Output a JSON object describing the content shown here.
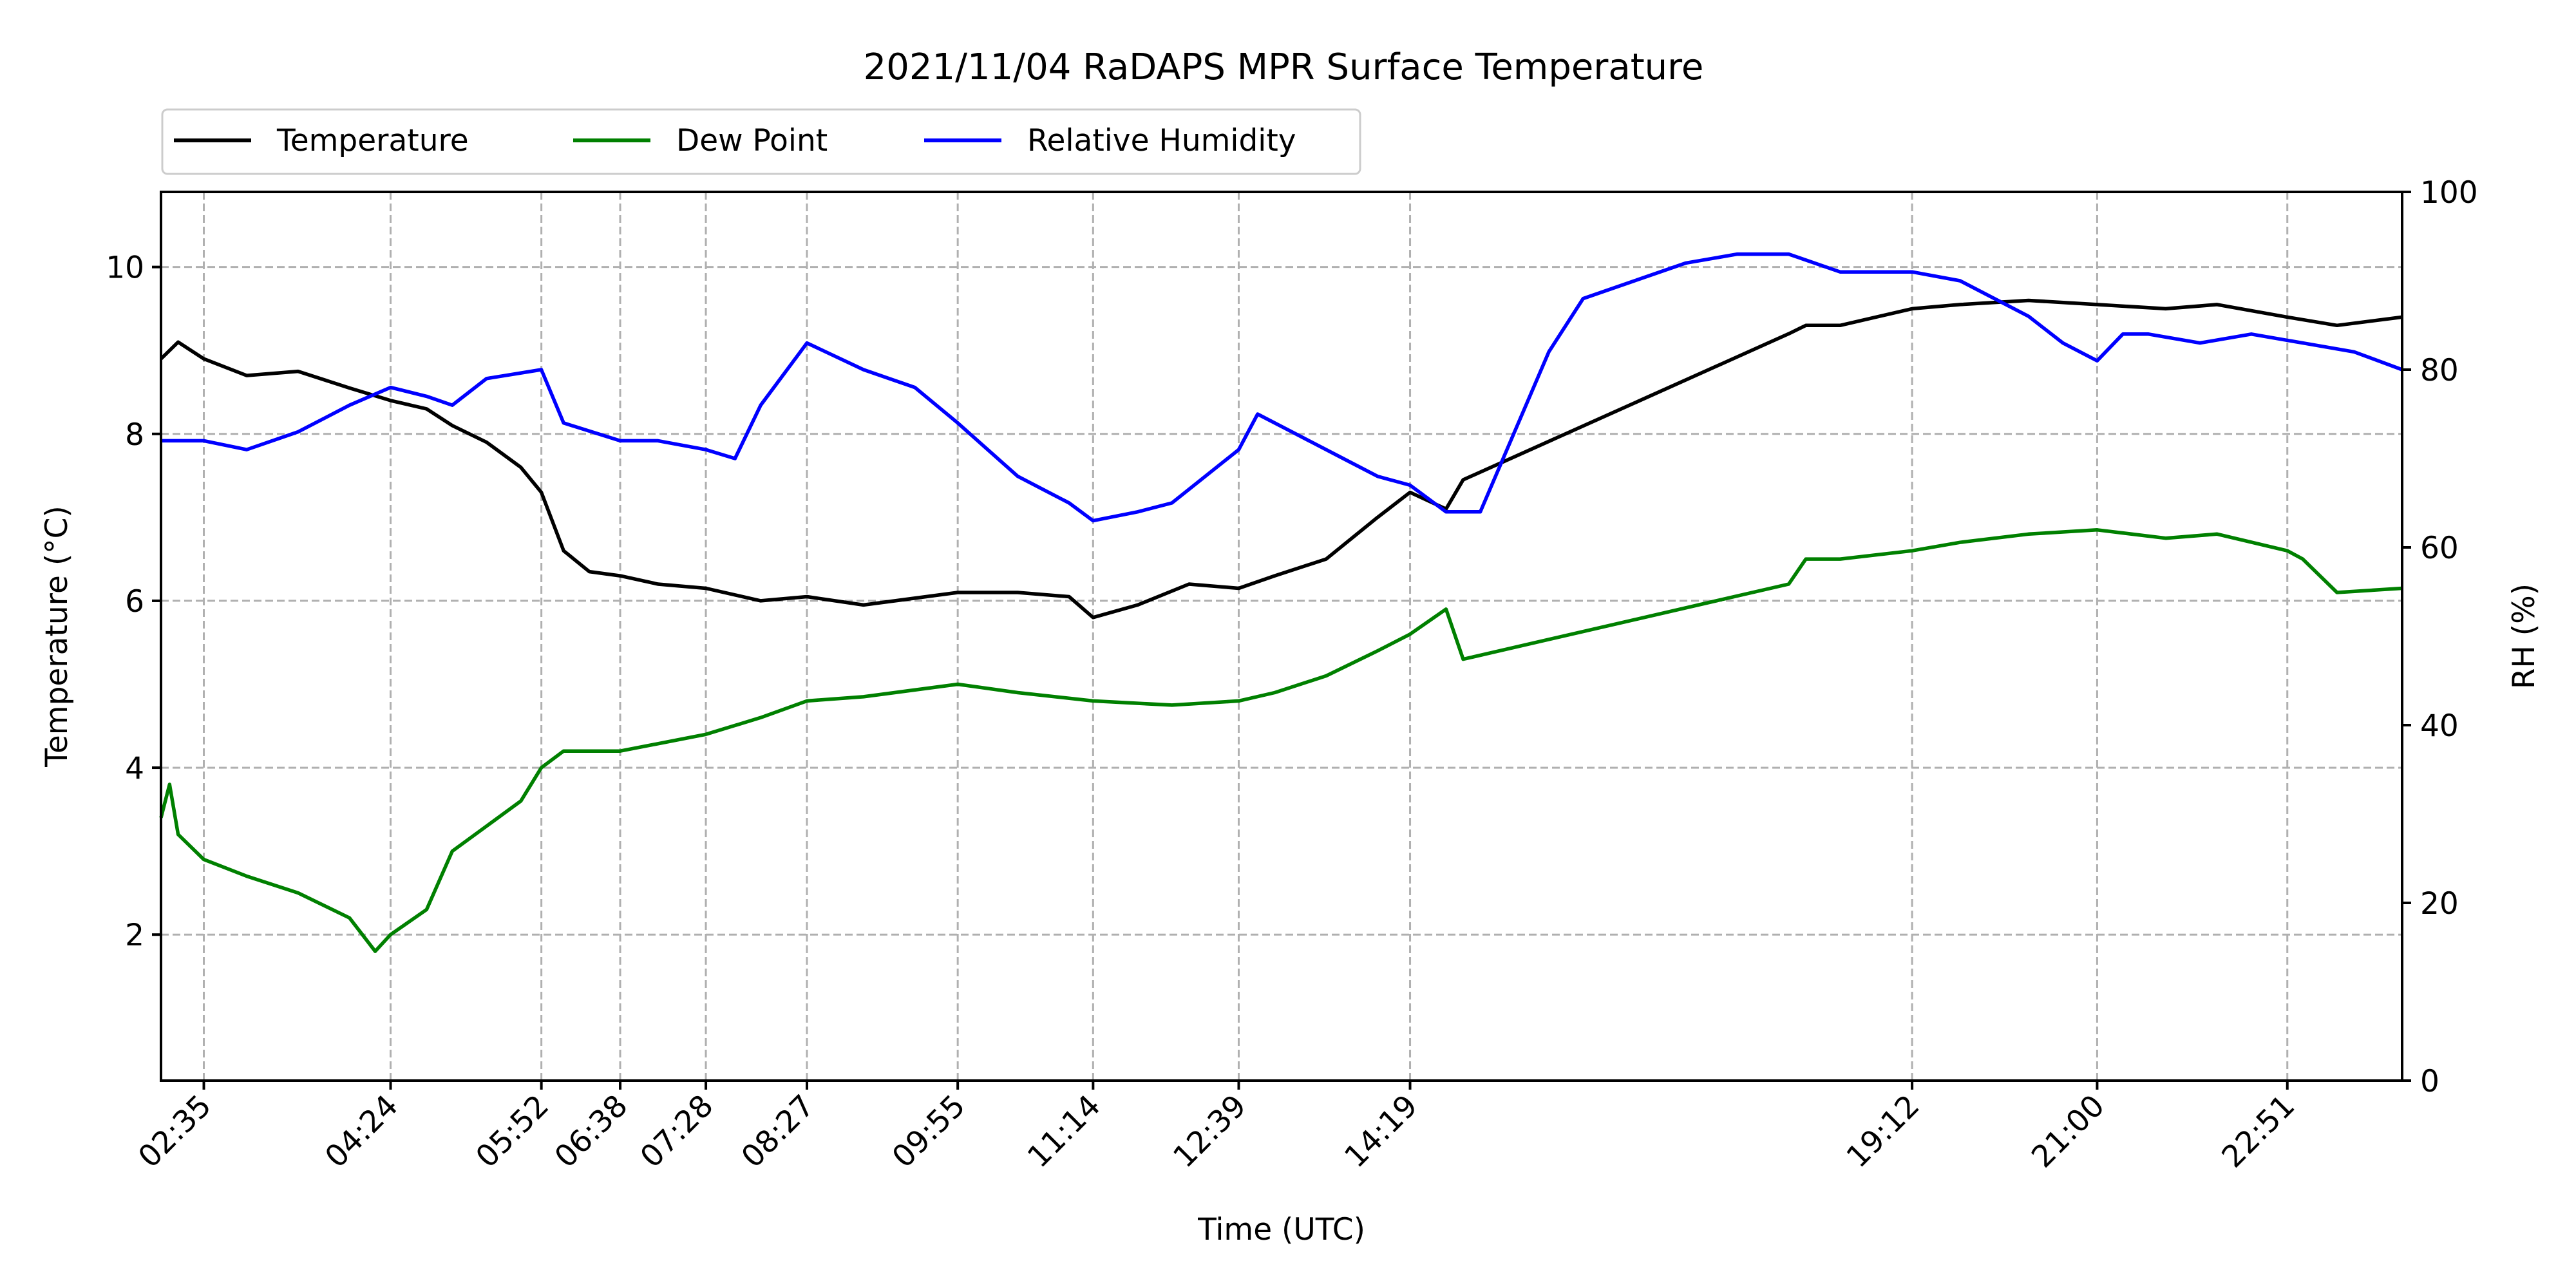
{
  "chart_data": {
    "type": "line",
    "title": "2021/11/04 RaDAPS MPR Surface Temperature",
    "xlabel": "Time (UTC)",
    "ylabel": "Temperature ($^\\circ$C)",
    "ylabel_display": "Temperature (°C)",
    "y2label": "RH (%)",
    "xlim": [
      "02:10",
      "23:58"
    ],
    "ylim": [
      0.25,
      10.9
    ],
    "y2lim": [
      0,
      100
    ],
    "x_ticks": [
      "02:35",
      "04:24",
      "05:52",
      "06:38",
      "07:28",
      "08:27",
      "09:55",
      "11:14",
      "12:39",
      "14:19",
      "19:12",
      "21:00",
      "22:51"
    ],
    "y_ticks": [
      2,
      4,
      6,
      8,
      10
    ],
    "y2_ticks": [
      0,
      20,
      40,
      60,
      80,
      100
    ],
    "grid": true,
    "legend": "top-left, above plot, 3 columns",
    "series": [
      {
        "name": "Temperature",
        "color": "#000000",
        "axis": "left",
        "x": [
          "02:10",
          "02:20",
          "02:35",
          "03:00",
          "03:30",
          "04:00",
          "04:24",
          "04:45",
          "05:00",
          "05:20",
          "05:40",
          "05:52",
          "06:05",
          "06:20",
          "06:38",
          "07:00",
          "07:28",
          "08:00",
          "08:27",
          "09:00",
          "09:55",
          "10:30",
          "11:00",
          "11:14",
          "11:40",
          "12:10",
          "12:39",
          "13:00",
          "13:30",
          "14:00",
          "14:19",
          "14:40",
          "14:50",
          "18:00",
          "18:10",
          "18:30",
          "19:12",
          "19:40",
          "20:20",
          "21:00",
          "21:40",
          "22:10",
          "22:51",
          "23:20",
          "23:58"
        ],
        "y": [
          8.9,
          9.1,
          8.9,
          8.7,
          8.75,
          8.55,
          8.4,
          8.3,
          8.1,
          7.9,
          7.6,
          7.3,
          6.6,
          6.35,
          6.3,
          6.2,
          6.15,
          6.0,
          6.05,
          5.95,
          6.1,
          6.1,
          6.05,
          5.8,
          5.95,
          6.2,
          6.15,
          6.3,
          6.5,
          7.0,
          7.3,
          7.1,
          7.45,
          9.2,
          9.3,
          9.3,
          9.5,
          9.55,
          9.6,
          9.55,
          9.5,
          9.55,
          9.4,
          9.3,
          9.4
        ]
      },
      {
        "name": "Dew Point",
        "color": "#008000",
        "axis": "left",
        "x": [
          "02:10",
          "02:15",
          "02:20",
          "02:35",
          "03:00",
          "03:30",
          "04:00",
          "04:15",
          "04:24",
          "04:45",
          "05:00",
          "05:20",
          "05:40",
          "05:52",
          "06:05",
          "06:38",
          "07:28",
          "08:00",
          "08:27",
          "09:00",
          "09:55",
          "10:30",
          "11:14",
          "12:00",
          "12:39",
          "13:00",
          "13:30",
          "14:00",
          "14:19",
          "14:40",
          "14:50",
          "18:00",
          "18:10",
          "18:30",
          "19:12",
          "19:40",
          "20:20",
          "21:00",
          "21:40",
          "22:10",
          "22:51",
          "23:00",
          "23:20",
          "23:58"
        ],
        "y": [
          3.4,
          3.8,
          3.2,
          2.9,
          2.7,
          2.5,
          2.2,
          1.8,
          2.0,
          2.3,
          3.0,
          3.3,
          3.6,
          4.0,
          4.2,
          4.2,
          4.4,
          4.6,
          4.8,
          4.85,
          5.0,
          4.9,
          4.8,
          4.75,
          4.8,
          4.9,
          5.1,
          5.4,
          5.6,
          5.9,
          5.3,
          6.2,
          6.5,
          6.5,
          6.6,
          6.7,
          6.8,
          6.85,
          6.75,
          6.8,
          6.6,
          6.5,
          6.1,
          6.15
        ]
      },
      {
        "name": "Relative Humidity",
        "color": "#0000ff",
        "axis": "right",
        "x": [
          "02:10",
          "02:35",
          "03:00",
          "03:30",
          "04:00",
          "04:24",
          "04:45",
          "05:00",
          "05:20",
          "05:52",
          "06:05",
          "06:38",
          "07:00",
          "07:28",
          "07:45",
          "08:00",
          "08:27",
          "09:00",
          "09:30",
          "09:55",
          "10:30",
          "11:00",
          "11:14",
          "11:40",
          "12:00",
          "12:39",
          "12:50",
          "13:10",
          "13:40",
          "14:00",
          "14:19",
          "14:40",
          "15:00",
          "15:20",
          "15:40",
          "16:00",
          "16:30",
          "17:00",
          "17:30",
          "18:00",
          "18:30",
          "19:12",
          "19:40",
          "20:20",
          "20:40",
          "21:00",
          "21:15",
          "21:30",
          "22:00",
          "22:30",
          "23:00",
          "23:30",
          "23:58"
        ],
        "y": [
          72,
          72,
          71,
          73,
          76,
          78,
          77,
          76,
          79,
          80,
          74,
          72,
          72,
          71,
          70,
          76,
          83,
          80,
          78,
          74,
          68,
          65,
          63,
          64,
          65,
          71,
          75,
          73,
          70,
          68,
          67,
          64,
          64,
          73,
          82,
          88,
          90,
          92,
          93,
          93,
          91,
          91,
          90,
          86,
          83,
          81,
          84,
          84,
          83,
          84,
          83,
          82,
          80
        ]
      }
    ]
  }
}
